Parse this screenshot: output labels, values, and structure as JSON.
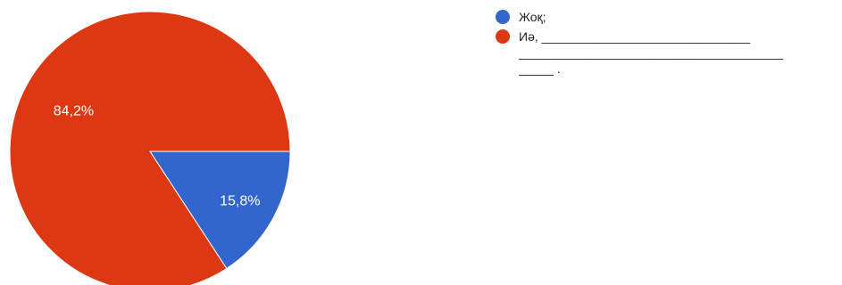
{
  "chart_data": {
    "type": "pie",
    "categories": [
      "Жоқ;",
      "Иә, ______________________________\n______________________________________\n_____ ."
    ],
    "values": [
      15.8,
      84.2
    ],
    "value_labels": [
      "15,8%",
      "84,2%"
    ],
    "colors": [
      "#3366cc",
      "#dc3912"
    ],
    "start_angle_deg": 90,
    "direction": "clockwise",
    "legend_position": "right"
  }
}
